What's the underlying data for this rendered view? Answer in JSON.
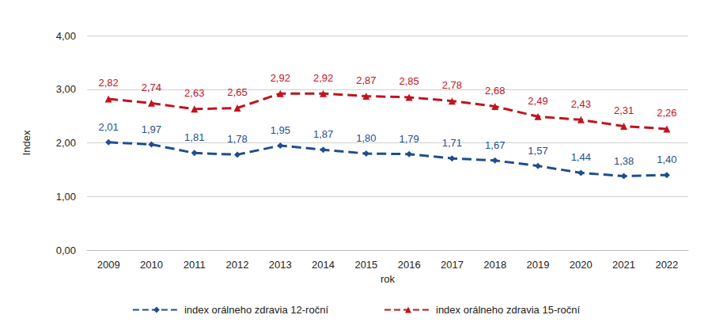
{
  "chart_data": {
    "type": "line",
    "x_label": "rok",
    "y_label": "Index",
    "categories": [
      "2009",
      "2010",
      "2011",
      "2012",
      "2013",
      "2014",
      "2015",
      "2016",
      "2017",
      "2018",
      "2019",
      "2020",
      "2021",
      "2022"
    ],
    "series": [
      {
        "name": "index orálneho zdravia 12-roční",
        "color": "#1f4e8c",
        "marker": "diamond",
        "line_style": "dashed",
        "values": [
          2.01,
          1.97,
          1.81,
          1.78,
          1.95,
          1.87,
          1.8,
          1.79,
          1.71,
          1.67,
          1.57,
          1.44,
          1.38,
          1.4
        ],
        "value_labels": [
          "2,01",
          "1,97",
          "1,81",
          "1,78",
          "1,95",
          "1,87",
          "1,80",
          "1,79",
          "1,71",
          "1,67",
          "1,57",
          "1,44",
          "1,38",
          "1,40"
        ]
      },
      {
        "name": "index orálneho zdravia 15-roční",
        "color": "#c0141e",
        "marker": "triangle",
        "line_style": "dashed",
        "values": [
          2.82,
          2.74,
          2.63,
          2.65,
          2.92,
          2.92,
          2.87,
          2.85,
          2.78,
          2.68,
          2.49,
          2.43,
          2.31,
          2.26
        ],
        "value_labels": [
          "2,82",
          "2,74",
          "2,63",
          "2,65",
          "2,92",
          "2,92",
          "2,87",
          "2,85",
          "2,78",
          "2,68",
          "2,49",
          "2,43",
          "2,31",
          "2,26"
        ]
      }
    ],
    "ylim": [
      0,
      4
    ],
    "yticks": [
      {
        "value": 0,
        "label": "0,00"
      },
      {
        "value": 1,
        "label": "1,00"
      },
      {
        "value": 2,
        "label": "2,00"
      },
      {
        "value": 3,
        "label": "3,00"
      },
      {
        "value": 4,
        "label": "4,00"
      }
    ],
    "grid": true,
    "legend": "bottom",
    "data_labels": true
  }
}
